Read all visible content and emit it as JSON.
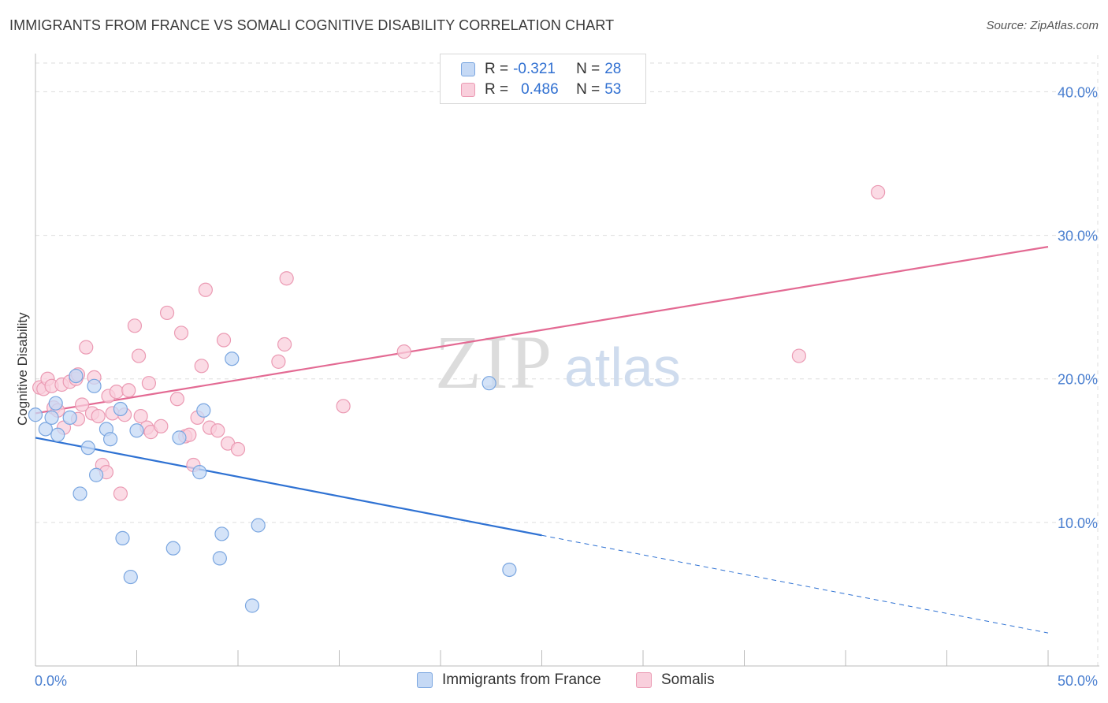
{
  "title": "IMMIGRANTS FROM FRANCE VS SOMALI COGNITIVE DISABILITY CORRELATION CHART",
  "source": "Source: ZipAtlas.com",
  "watermark": {
    "zip": "ZIP",
    "atlas": "atlas"
  },
  "colors": {
    "france_fill": "#c5d9f5",
    "france_stroke": "#7aa6e0",
    "france_line": "#2f72d3",
    "somali_fill": "#f9cfdc",
    "somali_stroke": "#eb9ab3",
    "somali_line": "#e36a93",
    "grid": "#dddddd",
    "tick_text": "#4a7fd0"
  },
  "legend": {
    "rows": [
      {
        "r_label": "R =",
        "r_value": "-0.321",
        "n_label": "N =",
        "n_value": "28"
      },
      {
        "r_label": "R =",
        "r_value": "0.486",
        "n_label": "N =",
        "n_value": "53"
      }
    ]
  },
  "bottom_legend": {
    "france": "Immigrants from France",
    "somali": "Somalis"
  },
  "chart_data": {
    "type": "scatter",
    "title": "IMMIGRANTS FROM FRANCE VS SOMALI COGNITIVE DISABILITY CORRELATION CHART",
    "xlabel": "",
    "ylabel": "Cognitive Disability",
    "xlim": [
      0,
      50
    ],
    "ylim": [
      0,
      42
    ],
    "x_ticks": [
      "0.0%",
      "50.0%"
    ],
    "y_ticks": [
      {
        "value": 10,
        "label": "10.0%"
      },
      {
        "value": 20,
        "label": "20.0%"
      },
      {
        "value": 30,
        "label": "30.0%"
      },
      {
        "value": 40,
        "label": "40.0%"
      }
    ],
    "grid": true,
    "series": [
      {
        "name": "Immigrants from France",
        "r": -0.321,
        "n": 28,
        "points": [
          [
            0.0,
            17.5
          ],
          [
            0.5,
            16.5
          ],
          [
            0.8,
            17.3
          ],
          [
            1.0,
            18.3
          ],
          [
            1.1,
            16.1
          ],
          [
            1.7,
            17.3
          ],
          [
            2.0,
            20.2
          ],
          [
            2.6,
            15.2
          ],
          [
            2.2,
            12.0
          ],
          [
            2.9,
            19.5
          ],
          [
            3.0,
            13.3
          ],
          [
            3.5,
            16.5
          ],
          [
            3.7,
            15.8
          ],
          [
            4.2,
            17.9
          ],
          [
            4.3,
            8.9
          ],
          [
            4.7,
            6.2
          ],
          [
            5.0,
            16.4
          ],
          [
            6.8,
            8.2
          ],
          [
            7.1,
            15.9
          ],
          [
            8.1,
            13.5
          ],
          [
            8.3,
            17.8
          ],
          [
            9.1,
            7.5
          ],
          [
            9.2,
            9.2
          ],
          [
            9.7,
            21.4
          ],
          [
            10.7,
            4.2
          ],
          [
            11.0,
            9.8
          ],
          [
            22.4,
            19.7
          ],
          [
            23.4,
            6.7
          ]
        ],
        "trend": {
          "x0": 0,
          "y0": 15.9,
          "x1": 25,
          "y1": 9.1,
          "dash_x1": 50,
          "dash_y1": 2.3
        }
      },
      {
        "name": "Somalis",
        "r": 0.486,
        "n": 53,
        "points": [
          [
            0.2,
            19.4
          ],
          [
            0.4,
            19.3
          ],
          [
            0.6,
            20.0
          ],
          [
            0.8,
            19.5
          ],
          [
            0.9,
            18.0
          ],
          [
            1.1,
            17.8
          ],
          [
            1.3,
            19.6
          ],
          [
            1.4,
            16.6
          ],
          [
            1.7,
            19.8
          ],
          [
            2.0,
            20.0
          ],
          [
            2.1,
            20.3
          ],
          [
            2.1,
            17.2
          ],
          [
            2.3,
            18.2
          ],
          [
            2.5,
            22.2
          ],
          [
            2.8,
            17.6
          ],
          [
            2.9,
            20.1
          ],
          [
            3.1,
            17.4
          ],
          [
            3.3,
            14.0
          ],
          [
            3.5,
            13.5
          ],
          [
            3.6,
            18.8
          ],
          [
            3.8,
            17.6
          ],
          [
            4.0,
            19.1
          ],
          [
            4.2,
            12.0
          ],
          [
            4.4,
            17.5
          ],
          [
            4.6,
            19.2
          ],
          [
            4.9,
            23.7
          ],
          [
            5.1,
            21.6
          ],
          [
            5.2,
            17.4
          ],
          [
            5.5,
            16.6
          ],
          [
            5.6,
            19.7
          ],
          [
            5.7,
            16.3
          ],
          [
            6.2,
            16.7
          ],
          [
            6.5,
            24.6
          ],
          [
            7.0,
            18.6
          ],
          [
            7.2,
            23.2
          ],
          [
            7.4,
            16.0
          ],
          [
            7.6,
            16.1
          ],
          [
            7.8,
            14.0
          ],
          [
            8.0,
            17.3
          ],
          [
            8.2,
            20.9
          ],
          [
            8.4,
            26.2
          ],
          [
            8.6,
            16.6
          ],
          [
            9.0,
            16.4
          ],
          [
            9.3,
            22.7
          ],
          [
            9.5,
            15.5
          ],
          [
            10.0,
            15.1
          ],
          [
            12.0,
            21.2
          ],
          [
            12.3,
            22.4
          ],
          [
            12.4,
            27.0
          ],
          [
            15.2,
            18.1
          ],
          [
            18.2,
            21.9
          ],
          [
            37.7,
            21.6
          ],
          [
            41.6,
            33.0
          ]
        ],
        "trend": {
          "x0": 0,
          "y0": 17.6,
          "x1": 50,
          "y1": 29.2
        }
      }
    ]
  }
}
